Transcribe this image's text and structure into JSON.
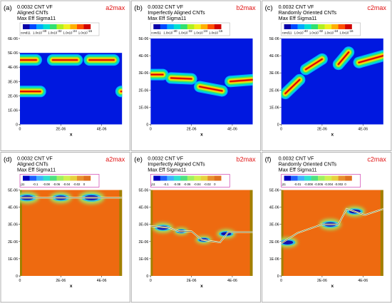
{
  "chart_data": [
    {
      "type": "heatmap",
      "panel": "(a)",
      "tag": "a2max",
      "title_lines": [
        "0.0032 CNT VF",
        "Aligned CNTs",
        "Max Eff Sigma11"
      ],
      "legend": {
        "label": "cond11",
        "ticks": [
          "1.0x10",
          "1.0x10",
          "1.0x10",
          "1.0x10"
        ],
        "tick_exponents": [
          "-40",
          "-32",
          "-24",
          "-16"
        ],
        "sign": "positive"
      },
      "xlabel": "x",
      "x_ticks": [
        "0",
        "2E-06",
        "4E-06"
      ],
      "y_ticks": [
        "0",
        "1E-06",
        "2E-06",
        "3E-06",
        "4E-06",
        "5E-06",
        "6E-06"
      ],
      "xlim": [
        0,
        5e-06
      ],
      "ylim": [
        0,
        6e-06
      ],
      "cnts": [
        [
          [
            0,
            4.5e-06
          ],
          [
            8e-07,
            4.5e-06
          ]
        ],
        [
          [
            1.6e-06,
            4.5e-06
          ],
          [
            2.8e-06,
            4.5e-06
          ]
        ],
        [
          [
            3.4e-06,
            4.5e-06
          ],
          [
            4.6e-06,
            4.5e-06
          ]
        ],
        [
          [
            0,
            2.3e-06
          ],
          [
            1e-06,
            2.3e-06
          ]
        ],
        [
          [
            4.95e-06,
            2.3e-06
          ],
          [
            5e-06,
            2.3e-06
          ]
        ]
      ]
    },
    {
      "type": "heatmap",
      "panel": "(b)",
      "tag": "b2max",
      "title_lines": [
        "0.0032 CNT VF",
        "Imperfectly Aligned CNTs",
        "Max Eff Sigma11"
      ],
      "legend": {
        "label": "cond11",
        "ticks": [
          "1.0x10",
          "1.0x10",
          "1.0x10",
          "1.0x10"
        ],
        "tick_exponents": [
          "-40",
          "-32",
          "-24",
          "-16"
        ],
        "sign": "positive"
      },
      "xlabel": "x",
      "x_ticks": [
        "0",
        "2E-06",
        "4E-06"
      ],
      "y_ticks": [
        "0",
        "1E-06",
        "2E-06",
        "3E-06",
        "4E-06",
        "5E-06"
      ],
      "xlim": [
        0,
        5e-06
      ],
      "ylim": [
        0,
        5e-06
      ],
      "cnts": [
        [
          [
            0,
            2.9e-06
          ],
          [
            6e-07,
            2.9e-06
          ]
        ],
        [
          [
            1e-06,
            2.7e-06
          ],
          [
            2e-06,
            2.65e-06
          ]
        ],
        [
          [
            2.4e-06,
            2.2e-06
          ],
          [
            3.5e-06,
            1.95e-06
          ]
        ],
        [
          [
            3.9e-06,
            2.5e-06
          ],
          [
            5e-06,
            2.6e-06
          ]
        ]
      ]
    },
    {
      "type": "heatmap",
      "panel": "(c)",
      "tag": "c2max",
      "title_lines": [
        "0.0032 CNT VF",
        "Randomly Oriented CNTs",
        "Max Eff Sigma11"
      ],
      "legend": {
        "label": "cond11",
        "ticks": [
          "1.0x10",
          "1.0x10",
          "1.0x10",
          "1.0x10"
        ],
        "tick_exponents": [
          "-40",
          "-32",
          "-24",
          "-16"
        ],
        "sign": "positive"
      },
      "xlabel": "x",
      "x_ticks": [
        "0",
        "2E-06",
        "4E-06"
      ],
      "y_ticks": [
        "0",
        "1E-06",
        "2E-06",
        "3E-06",
        "4E-06",
        "5E-06"
      ],
      "xlim": [
        0,
        5e-06
      ],
      "ylim": [
        0,
        5e-06
      ],
      "cnts": [
        [
          [
            2e-07,
            1.8e-06
          ],
          [
            9e-07,
            2.6e-06
          ]
        ],
        [
          [
            1.2e-06,
            3.2e-06
          ],
          [
            2e-06,
            3.8e-06
          ]
        ],
        [
          [
            2.8e-06,
            3.5e-06
          ],
          [
            3.3e-06,
            4.2e-06
          ]
        ],
        [
          [
            3.8e-06,
            3.6e-06
          ],
          [
            5e-06,
            4e-06
          ]
        ]
      ]
    },
    {
      "type": "heatmap",
      "panel": "(d)",
      "tag": "a2max",
      "title_lines": [
        "0.0032 CNT VF",
        "Aligned CNTs",
        "Max Eff Sigma11"
      ],
      "legend": {
        "label": "j11",
        "ticks": [
          "-0.1",
          "-0.08",
          "-0.06",
          "-0.04",
          "-0.02",
          "0"
        ],
        "sign": "negative"
      },
      "xlabel": "x",
      "x_ticks": [
        "0",
        "2E-06",
        "4E-06"
      ],
      "y_ticks": [
        "0",
        "1E-06",
        "2E-06",
        "3E-06",
        "4E-06",
        "5E-06"
      ],
      "xlim": [
        0,
        5e-06
      ],
      "ylim": [
        0,
        5e-06
      ],
      "cnts": [
        [
          [
            0,
            4.55e-06
          ],
          [
            5e-06,
            4.55e-06
          ]
        ]
      ],
      "spots": [
        [
          3.5e-07,
          4.55e-06,
          3.2e-07
        ],
        [
          2e-06,
          4.55e-06,
          3e-07
        ],
        [
          3.5e-06,
          4.55e-06,
          3.5e-07
        ]
      ]
    },
    {
      "type": "heatmap",
      "panel": "(e)",
      "tag": "b2max",
      "title_lines": [
        "0.0032 CNT VF",
        "Imperfectly Aligned CNTs",
        "Max Eff Sigma11"
      ],
      "legend": {
        "label": "j11",
        "ticks": [
          "-0.1",
          "-0.08",
          "-0.06",
          "-0.04",
          "-0.02",
          "0"
        ],
        "sign": "negative"
      },
      "xlabel": "x",
      "x_ticks": [
        "0",
        "2E-06",
        "4E-06"
      ],
      "y_ticks": [
        "0",
        "1E-06",
        "2E-06",
        "3E-06",
        "4E-06",
        "5E-06"
      ],
      "xlim": [
        0,
        5e-06
      ],
      "ylim": [
        0,
        5e-06
      ],
      "cnts": [
        [
          [
            0,
            2.9e-06
          ],
          [
            9e-07,
            2.8e-06
          ],
          [
            1.4e-06,
            2.6e-06
          ],
          [
            2e-06,
            2.6e-06
          ],
          [
            2.5e-06,
            2.1e-06
          ],
          [
            3.4e-06,
            1.95e-06
          ],
          [
            3.8e-06,
            2.55e-06
          ],
          [
            5e-06,
            2.55e-06
          ]
        ]
      ],
      "spots": [
        [
          6e-07,
          2.8e-06,
          2.8e-07
        ],
        [
          1.5e-06,
          2.6e-06,
          2e-07
        ],
        [
          2.6e-06,
          2.1e-06,
          2.2e-07
        ],
        [
          3.7e-06,
          2.45e-06,
          2.5e-07
        ]
      ]
    },
    {
      "type": "heatmap",
      "panel": "(f)",
      "tag": "c2max",
      "title_lines": [
        "0.0032 CNT VF",
        "Randomly Oriented CNTs",
        "Max Eff Sigma11"
      ],
      "legend": {
        "label": "j11",
        "ticks": [
          "-0.01",
          "-0.008",
          "-0.006",
          "-0.004",
          "-0.002",
          "0"
        ],
        "sign": "negative"
      },
      "xlabel": "x",
      "x_ticks": [
        "0",
        "2E-06",
        "4E-06"
      ],
      "y_ticks": [
        "0",
        "1E-06",
        "2E-06",
        "3E-06",
        "4E-06",
        "5E-06"
      ],
      "xlim": [
        0,
        5e-06
      ],
      "ylim": [
        0,
        5e-06
      ],
      "cnts": [
        [
          [
            0,
            1.9e-06
          ],
          [
            8e-07,
            2.5e-06
          ],
          [
            2e-06,
            3e-06
          ],
          [
            2.8e-06,
            3e-06
          ],
          [
            3.2e-06,
            3.9e-06
          ],
          [
            4.1e-06,
            3.55e-06
          ],
          [
            5e-06,
            3.9e-06
          ]
        ]
      ],
      "spots": [
        [
          3e-07,
          1.95e-06,
          2.8e-07
        ],
        [
          2.4e-06,
          3e-06,
          3e-07
        ],
        [
          3.6e-06,
          3.75e-06,
          2.8e-07
        ]
      ]
    }
  ]
}
